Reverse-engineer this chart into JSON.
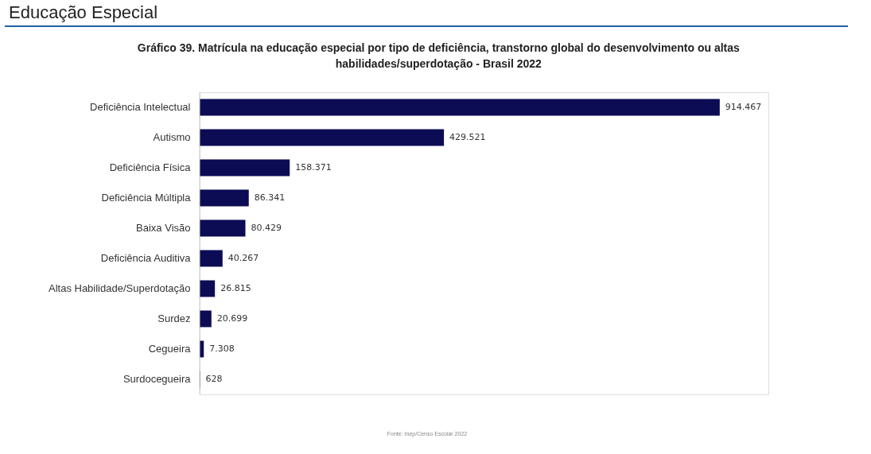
{
  "chart_data": {
    "type": "bar",
    "orientation": "horizontal",
    "title": "Gráfico 39. Matrícula na educação especial por tipo de deficiência, transtorno global do desenvolvimento ou altas habilidades/superdotação - Brasil 2022",
    "categories": [
      "Deficiência Intelectual",
      "Autismo",
      "Deficiência Física",
      "Deficiência Múltipla",
      "Baixa Visão",
      "Deficiência Auditiva",
      "Altas Habilidade/Superdotação",
      "Surdez",
      "Cegueira",
      "Surdocegueira"
    ],
    "values": [
      914467,
      429521,
      158371,
      86341,
      80429,
      40267,
      26815,
      20699,
      7308,
      628
    ],
    "value_labels": [
      "914.467",
      "429.521",
      "158.371",
      "86.341",
      "80.429",
      "40.267",
      "26.815",
      "20.699",
      "7.308",
      "628"
    ],
    "color": "#0c0c55",
    "annotations": [
      "Educação Especial",
      "Fonte: Inep/Censo Escolar 2022"
    ],
    "grid": false
  }
}
